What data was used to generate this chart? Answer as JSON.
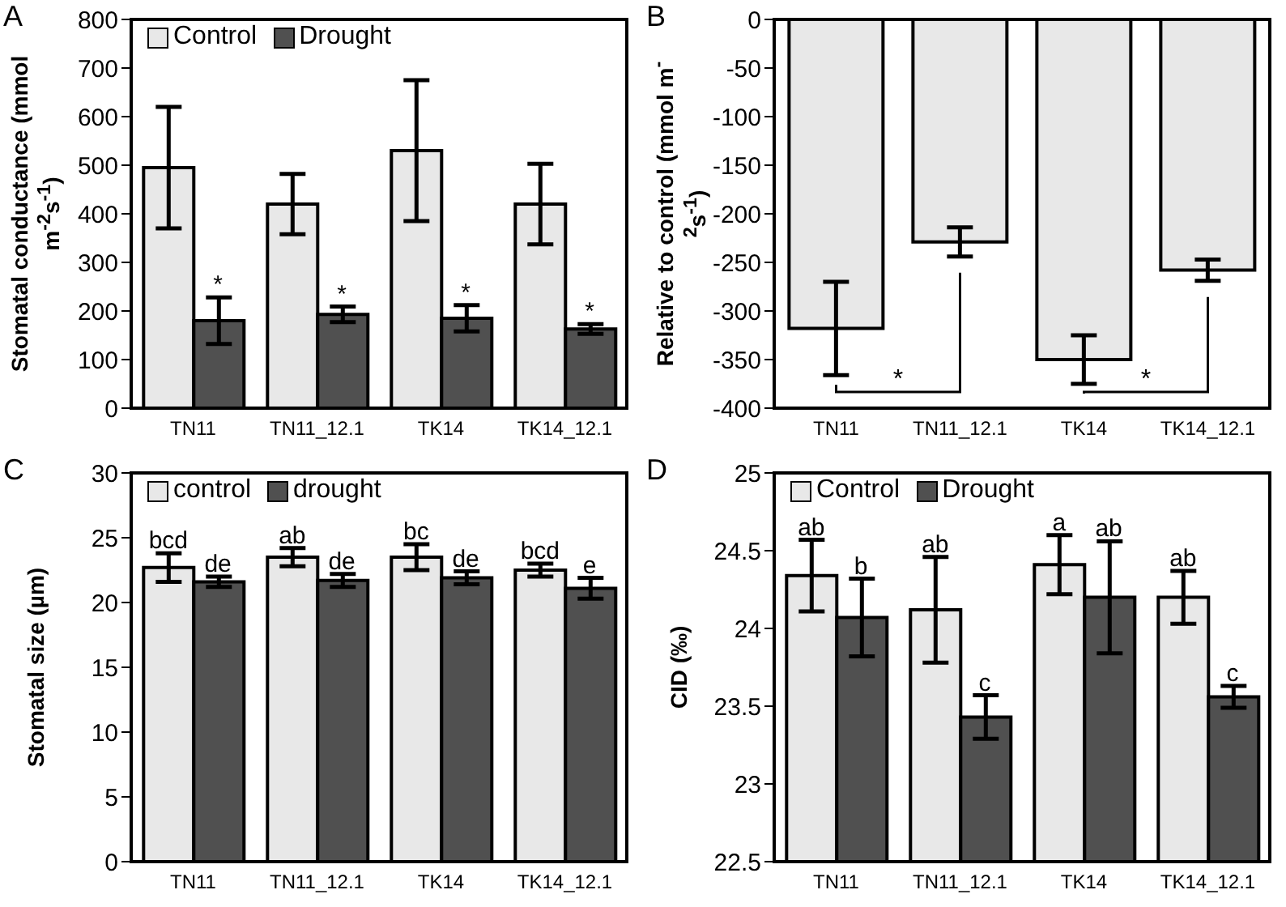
{
  "chart_data": [
    {
      "type": "bar",
      "title": "A",
      "ylabel": "Stomatal conductance (mmol m$^{-2}$s$^{-1}$)",
      "categories": [
        "TN11",
        "TN11_12.1",
        "TK14",
        "TK14_12.1"
      ],
      "series": [
        {
          "name": "Control",
          "color": "#e8e8e8",
          "values": [
            495,
            420,
            530,
            420
          ],
          "errors": [
            125,
            62,
            145,
            83
          ]
        },
        {
          "name": "Drought",
          "color": "#505050",
          "values": [
            180,
            193,
            185,
            163
          ],
          "errors": [
            48,
            16,
            27,
            10
          ]
        }
      ],
      "ylim": [
        0,
        800
      ],
      "yticks": [
        0,
        100,
        200,
        300,
        400,
        500,
        600,
        700,
        800
      ],
      "legend": "top left",
      "annotations": [
        "*",
        "*",
        "*",
        "*"
      ]
    },
    {
      "type": "bar",
      "title": "B",
      "ylabel": "Relative to control (mmol m$^{-2}$s$^{-1}$)",
      "categories": [
        "TN11",
        "TN11_12.1",
        "TK14",
        "TK14_12.1"
      ],
      "series": [
        {
          "color": "#e8e8e8",
          "values": [
            -318,
            -229,
            -350,
            -258
          ],
          "errors": [
            48,
            15,
            25,
            11
          ]
        }
      ],
      "ylim": [
        -400,
        0
      ],
      "yticks": [
        -400,
        -350,
        -300,
        -250,
        -200,
        -150,
        -100,
        -50,
        0
      ],
      "annotations": [
        "*",
        "*"
      ]
    },
    {
      "type": "bar",
      "title": "C",
      "ylabel": "Stomatal size (µm)",
      "categories": [
        "TN11",
        "TN11_12.1",
        "TK14",
        "TK14_12.1"
      ],
      "series": [
        {
          "name": "control",
          "color": "#e8e8e8",
          "values": [
            22.7,
            23.5,
            23.5,
            22.5
          ],
          "errors": [
            1.1,
            0.7,
            1.0,
            0.5
          ]
        },
        {
          "name": "drought",
          "color": "#505050",
          "values": [
            21.6,
            21.7,
            21.9,
            21.1
          ],
          "errors": [
            0.4,
            0.5,
            0.5,
            0.8
          ]
        }
      ],
      "ylim": [
        0,
        30
      ],
      "yticks": [
        0,
        5,
        10,
        15,
        20,
        25,
        30
      ],
      "legend": "top left",
      "annotations": [
        "bcd",
        "de",
        "ab",
        "de",
        "bc",
        "de",
        "bcd",
        "e"
      ]
    },
    {
      "type": "bar",
      "title": "D",
      "ylabel": "CID (‰)",
      "categories": [
        "TN11",
        "TN11_12.1",
        "TK14",
        "TK14_12.1"
      ],
      "series": [
        {
          "name": "Control",
          "color": "#e8e8e8",
          "values": [
            24.34,
            24.12,
            24.41,
            24.2
          ],
          "errors": [
            0.23,
            0.34,
            0.19,
            0.17
          ]
        },
        {
          "name": "Drought",
          "color": "#505050",
          "values": [
            24.07,
            23.43,
            24.2,
            23.56
          ],
          "errors": [
            0.25,
            0.14,
            0.36,
            0.07
          ]
        }
      ],
      "ylim": [
        22.5,
        25
      ],
      "yticks": [
        22.5,
        23,
        23.5,
        24,
        24.5,
        25
      ],
      "legend": "top left",
      "annotations": [
        "ab",
        "b",
        "ab",
        "c",
        "a",
        "ab",
        "ab",
        "c"
      ]
    }
  ]
}
